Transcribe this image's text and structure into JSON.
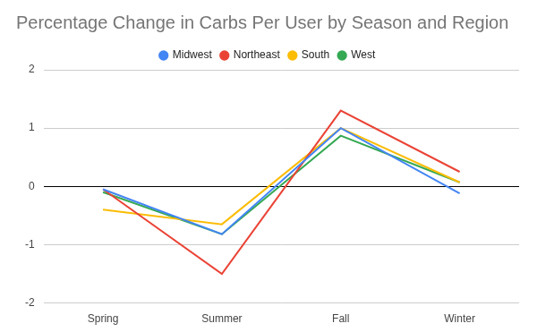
{
  "chart_data": {
    "type": "line",
    "title": "Percentage Change in Carbs Per User by Season and Region",
    "categories": [
      "Spring",
      "Summer",
      "Fall",
      "Winter"
    ],
    "series": [
      {
        "name": "Midwest",
        "color": "#4285f4",
        "values": [
          -0.05,
          -0.82,
          1.0,
          -0.12
        ]
      },
      {
        "name": "Northeast",
        "color": "#ea4335",
        "values": [
          -0.05,
          -1.5,
          1.3,
          0.25
        ]
      },
      {
        "name": "South",
        "color": "#fbbc04",
        "values": [
          -0.4,
          -0.65,
          1.0,
          0.07
        ]
      },
      {
        "name": "West",
        "color": "#34a853",
        "values": [
          -0.1,
          -0.82,
          0.87,
          0.07
        ]
      }
    ],
    "ylim": [
      -2,
      2
    ],
    "yticks": [
      -2,
      -1,
      0,
      1,
      2
    ],
    "grid": true,
    "legend": "top"
  }
}
